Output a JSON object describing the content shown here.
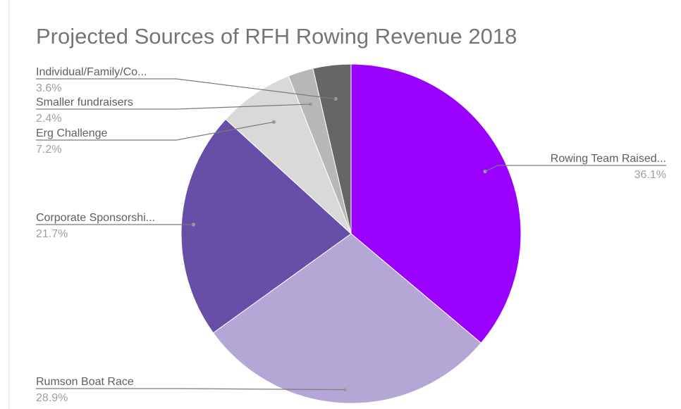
{
  "chart_data": {
    "type": "pie",
    "title": "Projected Sources of RFH Rowing Revenue 2018",
    "slices": [
      {
        "label": "Rowing Team Raised...",
        "value": 36.1,
        "display": "36.1%",
        "color": "#9900ff"
      },
      {
        "label": "Rumson Boat Race",
        "value": 28.9,
        "display": "28.9%",
        "color": "#b4a7d6"
      },
      {
        "label": "Corporate Sponsorshi...",
        "value": 21.7,
        "display": "21.7%",
        "color": "#674ea7"
      },
      {
        "label": "Erg Challenge",
        "value": 7.2,
        "display": "7.2%",
        "color": "#d9d9d9"
      },
      {
        "label": "Smaller fundraisers",
        "value": 2.4,
        "display": "2.4%",
        "color": "#b7b7b7"
      },
      {
        "label": "Individual/Family/Co...",
        "value": 3.6,
        "display": "3.6%",
        "color": "#666666"
      }
    ],
    "legend": "labels-on-leader-lines"
  }
}
